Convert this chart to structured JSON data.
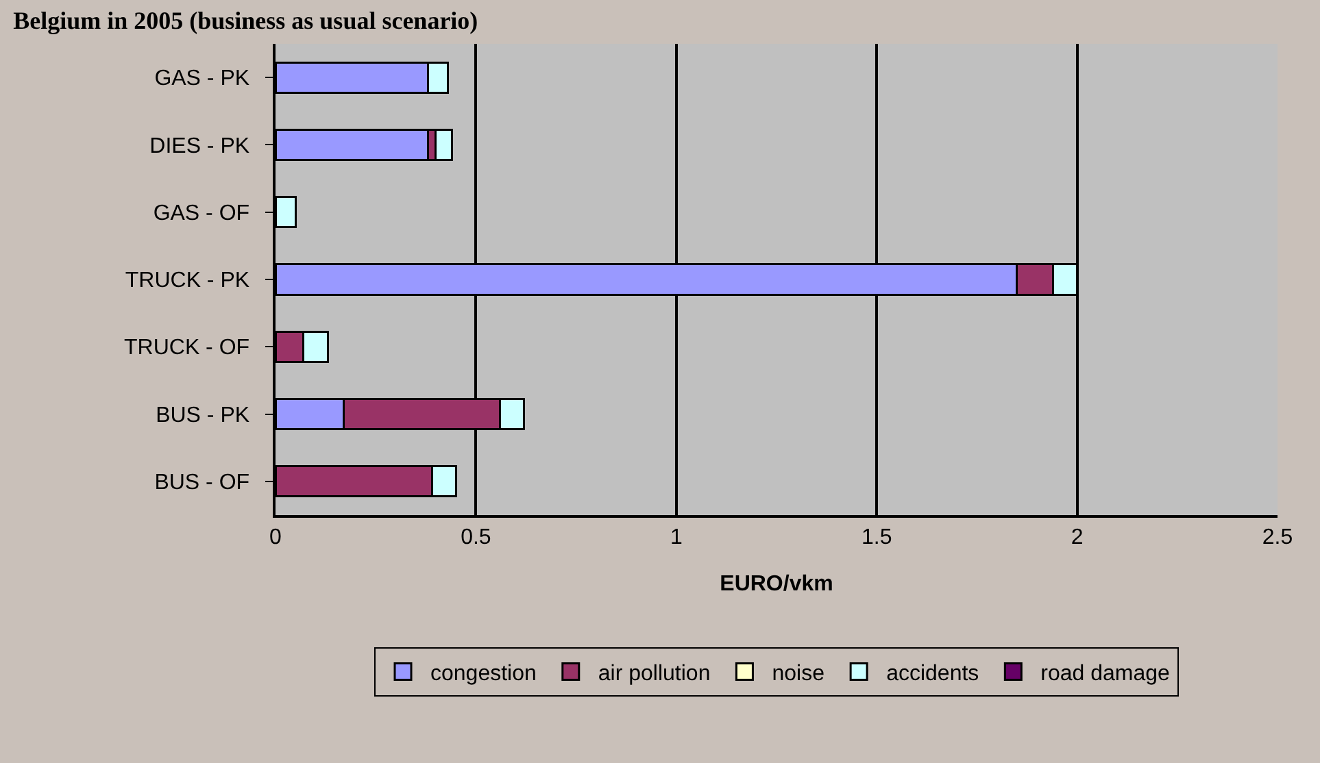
{
  "chart_data": {
    "type": "bar",
    "orientation": "horizontal",
    "stacked": true,
    "title": "Belgium in 2005 (business as usual scenario)",
    "xlabel": "EURO/vkm",
    "categories": [
      "GAS - PK",
      "DIES - PK",
      "GAS - OF",
      "TRUCK - PK",
      "TRUCK - OF",
      "BUS - PK",
      "BUS - OF"
    ],
    "series": [
      {
        "name": "congestion",
        "color": "#9999ff",
        "values": [
          0.38,
          0.38,
          null,
          1.85,
          null,
          0.17,
          null
        ]
      },
      {
        "name": "air pollution",
        "color": "#993366",
        "values": [
          null,
          0.02,
          null,
          0.09,
          0.07,
          0.39,
          0.39
        ]
      },
      {
        "name": "noise",
        "color": "#ffffcc",
        "values": [
          null,
          null,
          null,
          null,
          null,
          null,
          null
        ]
      },
      {
        "name": "accidents",
        "color": "#ccffff",
        "values": [
          0.05,
          0.04,
          0.05,
          0.06,
          0.06,
          0.06,
          0.06
        ]
      },
      {
        "name": "road damage",
        "color": "#660066",
        "values": [
          null,
          null,
          null,
          null,
          null,
          null,
          null
        ]
      }
    ],
    "xlim": [
      0,
      2.5
    ],
    "xticks": [
      0,
      0.5,
      1,
      1.5,
      2,
      2.5
    ],
    "grid": "x",
    "legend": "bottom"
  }
}
